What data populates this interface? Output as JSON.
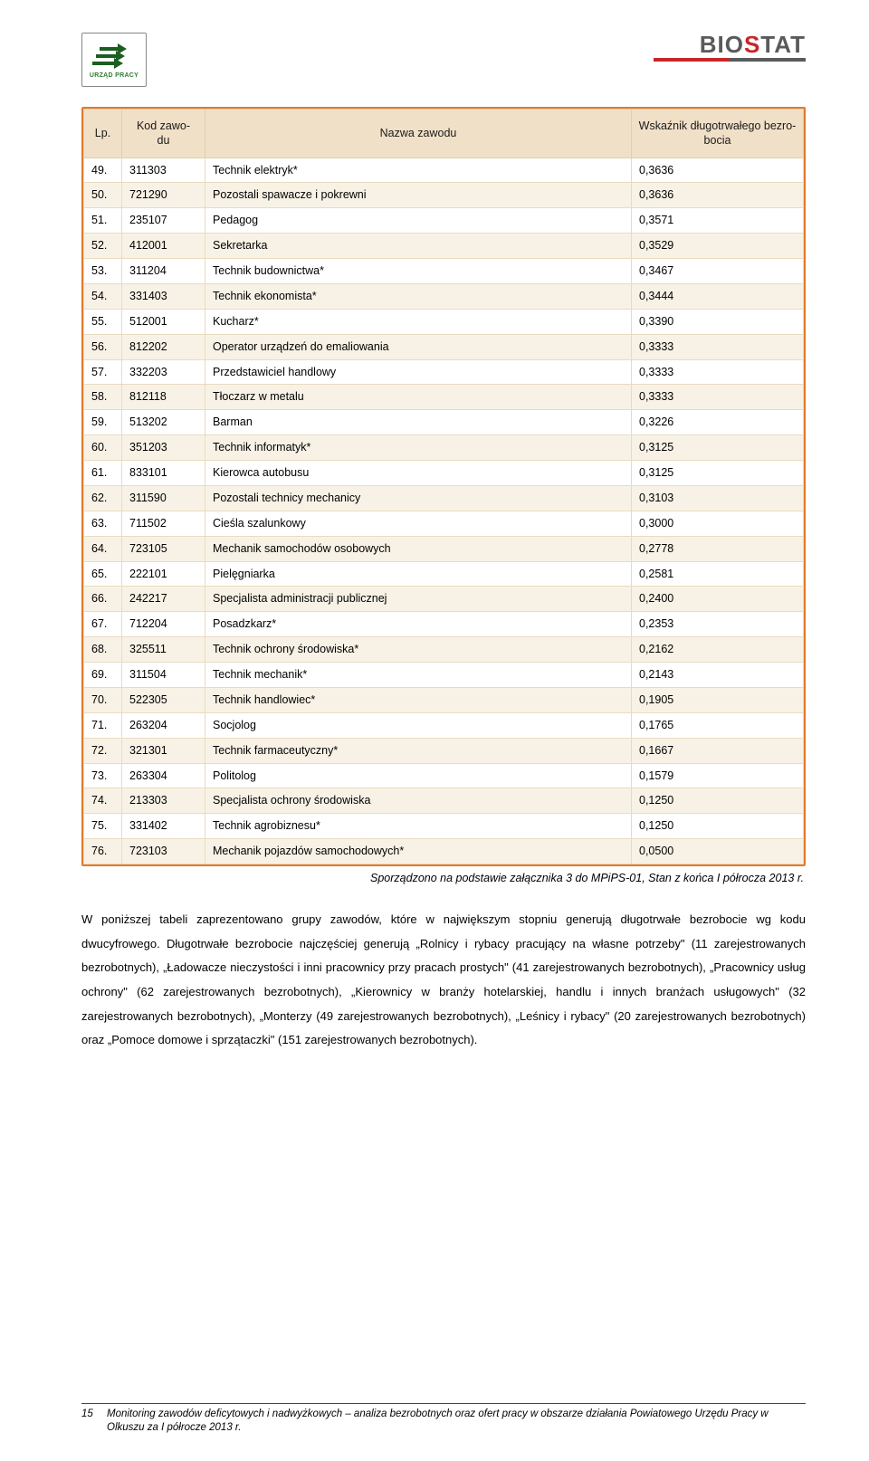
{
  "logo_left_caption": "URZĄD PRACY",
  "logo_right": {
    "b": "B",
    "i": "I",
    "o": "O",
    "s": "S",
    "t": "T",
    "a": "A",
    "t2": "T"
  },
  "table": {
    "headers": {
      "lp": "Lp.",
      "kod": "Kod zawo-\ndu",
      "nazwa": "Nazwa zawodu",
      "wsk": "Wskaźnik długotrwałego bezro-\nbocia"
    },
    "rows": [
      {
        "lp": "49.",
        "kod": "311303",
        "name": "Technik elektryk*",
        "val": "0,3636"
      },
      {
        "lp": "50.",
        "kod": "721290",
        "name": "Pozostali spawacze i pokrewni",
        "val": "0,3636"
      },
      {
        "lp": "51.",
        "kod": "235107",
        "name": "Pedagog",
        "val": "0,3571"
      },
      {
        "lp": "52.",
        "kod": "412001",
        "name": "Sekretarka",
        "val": "0,3529"
      },
      {
        "lp": "53.",
        "kod": "311204",
        "name": "Technik budownictwa*",
        "val": "0,3467"
      },
      {
        "lp": "54.",
        "kod": "331403",
        "name": "Technik ekonomista*",
        "val": "0,3444"
      },
      {
        "lp": "55.",
        "kod": "512001",
        "name": "Kucharz*",
        "val": "0,3390"
      },
      {
        "lp": "56.",
        "kod": "812202",
        "name": "Operator urządzeń do emaliowania",
        "val": "0,3333"
      },
      {
        "lp": "57.",
        "kod": "332203",
        "name": "Przedstawiciel handlowy",
        "val": "0,3333"
      },
      {
        "lp": "58.",
        "kod": "812118",
        "name": "Tłoczarz w metalu",
        "val": "0,3333"
      },
      {
        "lp": "59.",
        "kod": "513202",
        "name": "Barman",
        "val": "0,3226"
      },
      {
        "lp": "60.",
        "kod": "351203",
        "name": "Technik informatyk*",
        "val": "0,3125"
      },
      {
        "lp": "61.",
        "kod": "833101",
        "name": "Kierowca autobusu",
        "val": "0,3125"
      },
      {
        "lp": "62.",
        "kod": "311590",
        "name": "Pozostali technicy mechanicy",
        "val": "0,3103"
      },
      {
        "lp": "63.",
        "kod": "711502",
        "name": "Cieśla szalunkowy",
        "val": "0,3000"
      },
      {
        "lp": "64.",
        "kod": "723105",
        "name": "Mechanik samochodów osobowych",
        "val": "0,2778"
      },
      {
        "lp": "65.",
        "kod": "222101",
        "name": "Pielęgniarka",
        "val": "0,2581"
      },
      {
        "lp": "66.",
        "kod": "242217",
        "name": "Specjalista administracji publicznej",
        "val": "0,2400"
      },
      {
        "lp": "67.",
        "kod": "712204",
        "name": "Posadzkarz*",
        "val": "0,2353"
      },
      {
        "lp": "68.",
        "kod": "325511",
        "name": "Technik ochrony środowiska*",
        "val": "0,2162"
      },
      {
        "lp": "69.",
        "kod": "311504",
        "name": "Technik mechanik*",
        "val": "0,2143"
      },
      {
        "lp": "70.",
        "kod": "522305",
        "name": "Technik handlowiec*",
        "val": "0,1905"
      },
      {
        "lp": "71.",
        "kod": "263204",
        "name": "Socjolog",
        "val": "0,1765"
      },
      {
        "lp": "72.",
        "kod": "321301",
        "name": "Technik farmaceutyczny*",
        "val": "0,1667"
      },
      {
        "lp": "73.",
        "kod": "263304",
        "name": "Politolog",
        "val": "0,1579"
      },
      {
        "lp": "74.",
        "kod": "213303",
        "name": "Specjalista ochrony środowiska",
        "val": "0,1250"
      },
      {
        "lp": "75.",
        "kod": "331402",
        "name": "Technik agrobiznesu*",
        "val": "0,1250"
      },
      {
        "lp": "76.",
        "kod": "723103",
        "name": "Mechanik pojazdów samochodowych*",
        "val": "0,0500"
      }
    ]
  },
  "source_note": "Sporządzono na podstawie załącznika 3 do MPiPS-01, Stan z końca I półrocza 2013 r.",
  "body_text": "W poniższej tabeli zaprezentowano grupy zawodów, które w największym stopniu generują długotrwałe bezrobocie wg kodu dwucyfrowego. Długotrwałe bezrobocie najczęściej generują „Rolnicy i rybacy pracujący na własne potrzeby\" (11 zarejestrowanych bezrobotnych), „Ładowacze nieczystości i inni pracownicy przy pracach prostych\" (41 zarejestrowanych bezrobotnych), „Pracownicy usług ochrony\" (62 zarejestrowanych bezrobotnych), „Kierownicy w branży hotelarskiej, handlu i innych branżach usługowych\" (32 zarejestrowanych bezrobotnych), „Monterzy (49 zarejestrowanych bezrobotnych), „Leśnicy i rybacy\" (20 zarejestrowanych bezrobotnych) oraz „Pomoce domowe i sprzątaczki\" (151 zarejestrowanych bezrobotnych).",
  "footer": {
    "page": "15",
    "text": "Monitoring zawodów deficytowych i nadwyżkowych – analiza bezrobotnych oraz ofert pracy w obszarze działania Powiatowego Urzędu Pracy w Olkuszu za I półrocze 2013 r."
  },
  "colors": {
    "table_border": "#e07b2a",
    "header_bg": "#f1e0c8",
    "row_alt": "#f8f2e6",
    "logo_green": "#2e7d32",
    "biostat_red": "#c62828",
    "biostat_gray": "#5a5a5a"
  }
}
